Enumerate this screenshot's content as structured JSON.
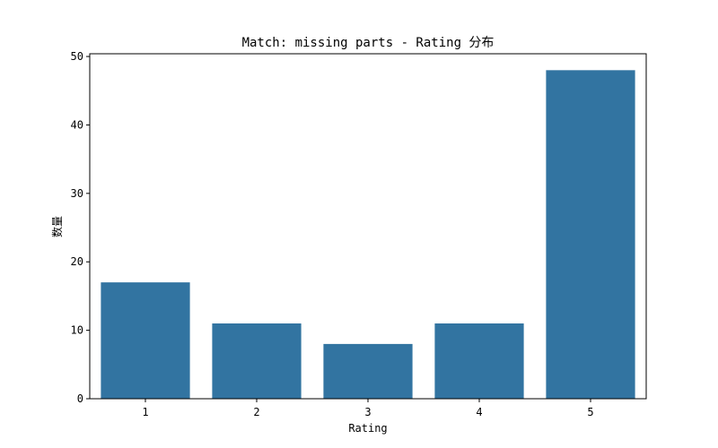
{
  "chart_data": {
    "type": "bar",
    "title": "Match: missing parts - Rating 分布",
    "xlabel": "Rating",
    "ylabel": "数量",
    "categories": [
      "1",
      "2",
      "3",
      "4",
      "5"
    ],
    "values": [
      17,
      11,
      8,
      11,
      48
    ],
    "ylim": [
      0,
      50.4
    ],
    "yticks": [
      0,
      10,
      20,
      30,
      40,
      50
    ],
    "grid": false,
    "legend": "none",
    "bar_color": "#3274a1"
  }
}
